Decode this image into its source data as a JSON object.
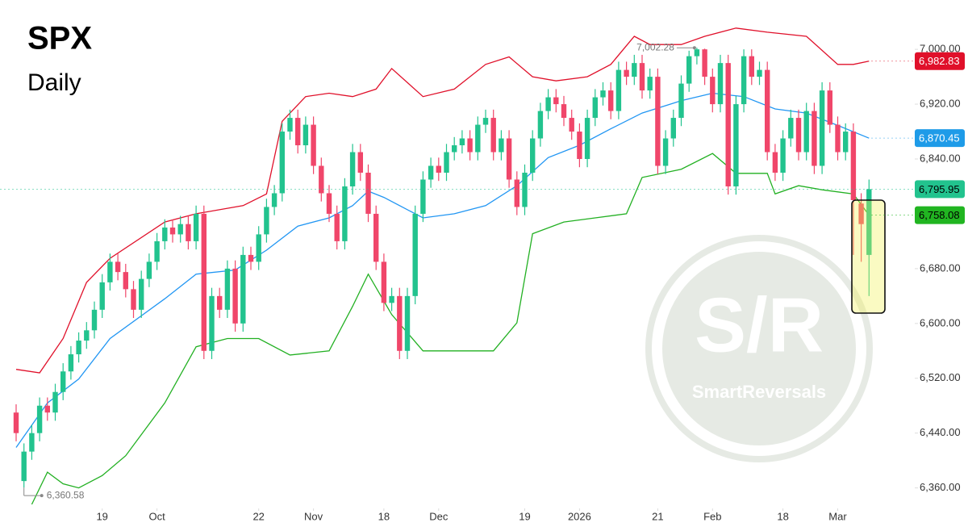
{
  "chart_data": {
    "type": "candlestick",
    "title": "SPX",
    "subtitle": "Daily",
    "watermark": {
      "main": "S/R",
      "sub": "SmartReversals"
    },
    "colors": {
      "up": "#22c38e",
      "down": "#f0466a"
    },
    "open": [
      6470,
      6370,
      6413,
      6440,
      6480,
      6470,
      6500,
      6530,
      6555,
      6575,
      6590,
      6620,
      6660,
      6690,
      6675,
      6650,
      6620,
      6665,
      6690,
      6720,
      6740,
      6730,
      6745,
      6720,
      6760,
      6560,
      6640,
      6620,
      6680,
      6600,
      6700,
      6690,
      6730,
      6770,
      6790,
      6880,
      6900,
      6860,
      6890,
      6830,
      6790,
      6760,
      6720,
      6800,
      6850,
      6820,
      6760,
      6690,
      6630,
      6640,
      6560,
      6640,
      6760,
      6810,
      6830,
      6820,
      6850,
      6860,
      6870,
      6850,
      6890,
      6900,
      6850,
      6870,
      6810,
      6770,
      6820,
      6870,
      6910,
      6930,
      6920,
      6900,
      6880,
      6840,
      6900,
      6930,
      6940,
      6910,
      6970,
      6960,
      6980,
      6940,
      6960,
      6830,
      6870,
      6900,
      6950,
      6990,
      7000,
      6960,
      6920,
      6980,
      6800,
      6920,
      6990,
      6960,
      6970,
      6850,
      6820,
      6870,
      6900,
      6850,
      6910,
      6830,
      6940,
      6890,
      6850,
      6880,
      6775,
      6700
    ],
    "high": [
      6482,
      6425,
      6452,
      6492,
      6492,
      6512,
      6542,
      6567,
      6587,
      6602,
      6632,
      6672,
      6702,
      6702,
      6687,
      6662,
      6677,
      6702,
      6732,
      6752,
      6752,
      6757,
      6757,
      6772,
      6772,
      6652,
      6652,
      6692,
      6692,
      6712,
      6712,
      6742,
      6782,
      6802,
      6892,
      6912,
      6912,
      6902,
      6902,
      6842,
      6802,
      6772,
      6812,
      6862,
      6862,
      6832,
      6772,
      6702,
      6652,
      6652,
      6652,
      6772,
      6822,
      6842,
      6842,
      6862,
      6872,
      6882,
      6882,
      6902,
      6912,
      6912,
      6882,
      6882,
      6822,
      6832,
      6882,
      6922,
      6942,
      6942,
      6932,
      6912,
      6892,
      6912,
      6942,
      6952,
      6952,
      6982,
      6982,
      6992,
      6992,
      6972,
      6972,
      6882,
      6912,
      6962,
      6998,
      7002.28,
      7001,
      6972,
      6992,
      6992,
      6932,
      7000,
      7000,
      6982,
      6982,
      6862,
      6882,
      6912,
      6912,
      6922,
      6922,
      6952,
      6952,
      6902,
      6892,
      6892,
      6790,
      6810
    ],
    "low": [
      6428,
      6360.58,
      6401,
      6428,
      6458,
      6458,
      6488,
      6518,
      6543,
      6563,
      6578,
      6608,
      6648,
      6663,
      6638,
      6608,
      6608,
      6653,
      6678,
      6708,
      6718,
      6718,
      6708,
      6708,
      6548,
      6548,
      6608,
      6608,
      6588,
      6588,
      6678,
      6678,
      6718,
      6758,
      6778,
      6868,
      6848,
      6848,
      6818,
      6778,
      6748,
      6708,
      6708,
      6788,
      6808,
      6748,
      6678,
      6618,
      6618,
      6548,
      6548,
      6628,
      6748,
      6798,
      6808,
      6808,
      6838,
      6848,
      6838,
      6838,
      6878,
      6838,
      6838,
      6798,
      6758,
      6758,
      6808,
      6858,
      6898,
      6908,
      6888,
      6868,
      6828,
      6828,
      6888,
      6918,
      6898,
      6898,
      6948,
      6948,
      6928,
      6928,
      6818,
      6818,
      6858,
      6888,
      6938,
      6978,
      6948,
      6908,
      6908,
      6788,
      6788,
      6908,
      6948,
      6948,
      6838,
      6808,
      6808,
      6858,
      6838,
      6838,
      6818,
      6818,
      6878,
      6838,
      6838,
      6700,
      6690,
      6640
    ],
    "close": [
      6440,
      6413,
      6440,
      6480,
      6470,
      6500,
      6530,
      6555,
      6575,
      6590,
      6620,
      6660,
      6690,
      6675,
      6650,
      6620,
      6665,
      6690,
      6720,
      6740,
      6730,
      6745,
      6720,
      6760,
      6560,
      6640,
      6620,
      6680,
      6600,
      6700,
      6690,
      6730,
      6770,
      6790,
      6880,
      6900,
      6860,
      6890,
      6830,
      6790,
      6760,
      6720,
      6800,
      6850,
      6820,
      6760,
      6690,
      6630,
      6640,
      6560,
      6640,
      6760,
      6810,
      6830,
      6820,
      6850,
      6860,
      6870,
      6850,
      6890,
      6900,
      6850,
      6870,
      6810,
      6770,
      6820,
      6870,
      6910,
      6930,
      6920,
      6900,
      6880,
      6840,
      6900,
      6930,
      6940,
      6910,
      6970,
      6960,
      6980,
      6940,
      6960,
      6830,
      6870,
      6900,
      6950,
      6990,
      7000,
      6960,
      6920,
      6980,
      6800,
      6920,
      6990,
      6960,
      6970,
      6850,
      6820,
      6870,
      6900,
      6850,
      6910,
      6830,
      6940,
      6890,
      6850,
      6880,
      6780,
      6745,
      6795.95
    ],
    "series": [
      {
        "color": "#e0102a",
        "x": [
          0,
          3,
          6,
          9,
          12,
          19,
          23,
          29,
          32,
          34,
          37,
          40,
          43,
          46,
          48,
          52,
          56,
          60,
          63,
          66,
          69,
          73,
          76,
          79,
          81,
          85,
          88,
          92,
          96,
          101,
          105,
          107,
          109
        ],
        "values": [
          6533,
          6528,
          6578,
          6660,
          6695,
          6748,
          6760,
          6772,
          6789,
          6895,
          6931,
          6936,
          6931,
          6942,
          6972,
          6931,
          6942,
          6978,
          6989,
          6960,
          6954,
          6960,
          6978,
          7019,
          7007,
          7007,
          7019,
          7031,
          7025,
          7019,
          6978,
          6978,
          6982.83
        ]
      },
      {
        "color": "#2196f3",
        "x": [
          0,
          4,
          8,
          12,
          19,
          23,
          28,
          32,
          36,
          40,
          43,
          45,
          47,
          52,
          56,
          60,
          64,
          68,
          72,
          76,
          80,
          85,
          89,
          93,
          97,
          101,
          105,
          109
        ],
        "values": [
          6419,
          6484,
          6519,
          6578,
          6636,
          6672,
          6678,
          6707,
          6742,
          6754,
          6772,
          6793,
          6784,
          6754,
          6760,
          6772,
          6801,
          6842,
          6860,
          6884,
          6907,
          6925,
          6936,
          6931,
          6913,
          6907,
          6889,
          6870.45
        ]
      },
      {
        "color": "#22b022",
        "x": [
          2,
          4,
          6,
          8,
          11,
          14,
          19,
          23,
          27,
          31,
          35,
          40,
          43,
          45,
          48,
          52,
          56,
          61,
          64,
          66,
          70,
          74,
          78,
          80,
          85,
          89,
          92,
          96,
          97,
          100,
          103,
          107,
          109
        ],
        "values": [
          6336,
          6383,
          6366,
          6360,
          6378,
          6407,
          6484,
          6566,
          6578,
          6578,
          6554,
          6560,
          6625,
          6672,
          6613,
          6560,
          6560,
          6560,
          6601,
          6731,
          6748,
          6754,
          6760,
          6813,
          6825,
          6848,
          6819,
          6819,
          6789,
          6801,
          6795,
          6789,
          6758.08
        ]
      }
    ],
    "price_labels": [
      {
        "value": 6982.83,
        "label": "6,982.83",
        "color": "#e0102a"
      },
      {
        "value": 6870.45,
        "label": "6,870.45",
        "color": "#1e9be8"
      },
      {
        "value": 6795.95,
        "label": "6,795.95",
        "color": "#22c38e"
      },
      {
        "value": 6758.08,
        "label": "6,758.08",
        "color": "#21b521"
      }
    ],
    "annotations": [
      "7,002.28",
      "6,360.58"
    ],
    "ylim": [
      6336,
      7072
    ],
    "yticks": [
      {
        "value": 6360,
        "label": "6,360.00"
      },
      {
        "value": 6440,
        "label": "6,440.00"
      },
      {
        "value": 6520,
        "label": "6,520.00"
      },
      {
        "value": 6600,
        "label": "6,600.00"
      },
      {
        "value": 6680,
        "label": "6,680.00"
      },
      {
        "value": 6760,
        "label": "6,760.00"
      },
      {
        "value": 6840,
        "label": "6,840.00"
      },
      {
        "value": 6920,
        "label": "6,920.00"
      },
      {
        "value": 7000,
        "label": "7,000.00"
      }
    ],
    "xticks": [
      {
        "value": 11,
        "label": "19"
      },
      {
        "value": 18,
        "label": "Oct"
      },
      {
        "value": 31,
        "label": "22"
      },
      {
        "value": 38,
        "label": "Nov"
      },
      {
        "value": 47,
        "label": "18"
      },
      {
        "value": 54,
        "label": "Dec"
      },
      {
        "value": 65,
        "label": "19"
      },
      {
        "value": 72,
        "label": "2026"
      },
      {
        "value": 82,
        "label": "21"
      },
      {
        "value": 89,
        "label": "Feb"
      },
      {
        "value": 98,
        "label": "18"
      },
      {
        "value": 105,
        "label": "Mar"
      }
    ]
  }
}
